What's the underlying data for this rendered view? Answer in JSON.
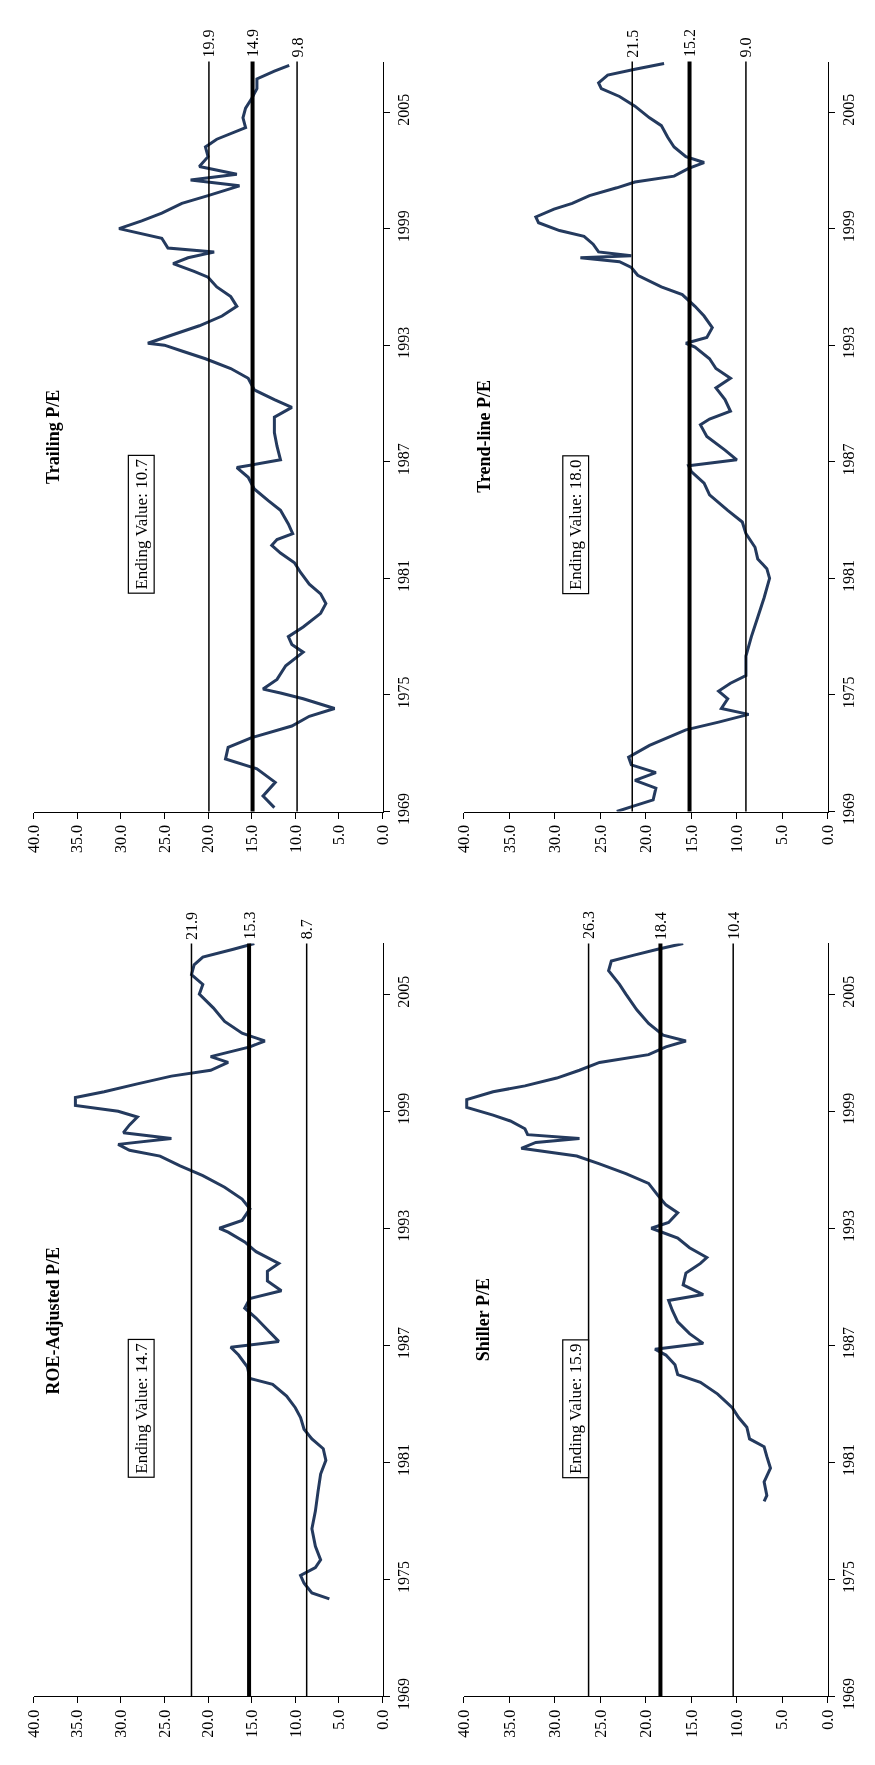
{
  "chart_data": [
    {
      "type": "line",
      "title": "Trailing P/E",
      "annotations": [
        "Ending Value: 10.7"
      ],
      "xlim": [
        40,
        0
      ],
      "xticks": [
        {
          "value": 40,
          "label": "40.0"
        },
        {
          "value": 35,
          "label": "35.0"
        },
        {
          "value": 30,
          "label": "30.0"
        },
        {
          "value": 25,
          "label": "25.0"
        },
        {
          "value": 20,
          "label": "20.0"
        },
        {
          "value": 15,
          "label": "15.0"
        },
        {
          "value": 10,
          "label": "10.0"
        },
        {
          "value": 5,
          "label": "5.0"
        },
        {
          "value": 0,
          "label": "0.0"
        }
      ],
      "ylim": [
        1969,
        2007.6
      ],
      "yticks": [
        1969,
        1975,
        1981,
        1987,
        1993,
        1999,
        2005
      ],
      "grid": false,
      "marker": "none",
      "line_style": "solid",
      "ref_lines": [
        {
          "axis": "x",
          "value": 19.9,
          "label": "19.9"
        },
        {
          "axis": "x",
          "value": 14.9,
          "label": "14.9"
        },
        {
          "axis": "x",
          "value": 9.8,
          "label": "9.8"
        }
      ],
      "series": [
        {
          "color": "#243a5e",
          "values": [
            1969.2,
            1969.8,
            1970.5,
            1971.2,
            1971.7,
            1972.3,
            1972.8,
            1973.4,
            1973.9,
            1974.3,
            1974.8,
            1975.1,
            1975.3,
            1975.8,
            1976.5,
            1977.2,
            1977.6,
            1978.0,
            1978.5,
            1979.2,
            1979.7,
            1980.2,
            1980.7,
            1981.3,
            1981.8,
            1982.3,
            1982.7,
            1983.0,
            1983.3,
            1983.8,
            1984.5,
            1985.0,
            1985.6,
            1986.2,
            1986.7,
            1987.1,
            1987.8,
            1988.5,
            1989.3,
            1989.8,
            1990.2,
            1990.7,
            1991.3,
            1991.8,
            1992.3,
            1992.7,
            1993.0,
            1993.1,
            1993.5,
            1994.0,
            1994.5,
            1995.0,
            1995.5,
            1996.0,
            1996.5,
            1996.8,
            1997.2,
            1997.5,
            1997.8,
            1998.0,
            1998.5,
            1999.0,
            1999.4,
            1999.8,
            2000.3,
            2000.7,
            2001.2,
            2001.5,
            2001.8,
            2002.2,
            2002.7,
            2003.2,
            2003.6,
            2004.2,
            2004.7,
            2005.2,
            2005.7,
            2006.2,
            2006.7,
            2007.1,
            2007.4
          ],
          "x": [
            12.4,
            13.7,
            12.3,
            14.4,
            18.0,
            17.7,
            15.0,
            10.4,
            8.4,
            5.5,
            9.1,
            11.7,
            13.7,
            12.1,
            11.1,
            9.1,
            10.4,
            10.8,
            9.1,
            7.1,
            6.5,
            7.1,
            8.4,
            9.4,
            10.1,
            11.7,
            12.7,
            12.1,
            10.3,
            10.8,
            11.7,
            13.1,
            14.7,
            15.4,
            16.7,
            11.7,
            12.1,
            12.4,
            12.4,
            10.4,
            12.4,
            14.7,
            15.4,
            17.4,
            20.3,
            23.0,
            25.0,
            26.9,
            24.3,
            21.0,
            18.4,
            16.7,
            17.4,
            19.0,
            20.0,
            21.6,
            24.0,
            22.3,
            19.3,
            24.6,
            25.3,
            30.2,
            27.6,
            25.3,
            23.0,
            20.0,
            16.4,
            22.0,
            16.7,
            21.0,
            20.0,
            20.3,
            19.0,
            15.7,
            16.0,
            15.7,
            15.0,
            14.4,
            14.4,
            12.4,
            10.7
          ]
        }
      ]
    },
    {
      "type": "line",
      "title": "Trend-line P/E",
      "annotations": [
        "Ending Value: 18.0"
      ],
      "xlim": [
        40,
        0
      ],
      "xticks": [
        {
          "value": 40,
          "label": "40.0"
        },
        {
          "value": 35,
          "label": "35.0"
        },
        {
          "value": 30,
          "label": "30.0"
        },
        {
          "value": 25,
          "label": "25.0"
        },
        {
          "value": 20,
          "label": "20.0"
        },
        {
          "value": 15,
          "label": "15.0"
        },
        {
          "value": 10,
          "label": "10.0"
        },
        {
          "value": 5,
          "label": "5.0"
        },
        {
          "value": 0,
          "label": "0.0"
        }
      ],
      "ylim": [
        1969,
        2007.6
      ],
      "yticks": [
        1969,
        1975,
        1981,
        1987,
        1993,
        1999,
        2005
      ],
      "grid": false,
      "marker": "none",
      "line_style": "solid",
      "ref_lines": [
        {
          "axis": "x",
          "value": 21.5,
          "label": "21.5"
        },
        {
          "axis": "x",
          "value": 15.2,
          "label": "15.2"
        },
        {
          "axis": "x",
          "value": 9.0,
          "label": "9.0"
        }
      ],
      "series": [
        {
          "color": "#243a5e",
          "values": [
            1969.0,
            1969.3,
            1969.6,
            1970.2,
            1970.6,
            1971.0,
            1971.4,
            1971.8,
            1972.4,
            1972.8,
            1973.2,
            1973.6,
            1974.0,
            1974.3,
            1974.8,
            1975.2,
            1975.6,
            1976.0,
            1977.0,
            1978.0,
            1979.0,
            1980.0,
            1981.0,
            1981.5,
            1982.0,
            1982.6,
            1983.3,
            1983.9,
            1984.5,
            1985.3,
            1985.9,
            1986.5,
            1986.8,
            1987.1,
            1987.6,
            1988.3,
            1988.9,
            1989.2,
            1989.6,
            1990.2,
            1990.8,
            1991.3,
            1991.8,
            1992.3,
            1992.9,
            1993.1,
            1993.4,
            1993.9,
            1994.5,
            1995.0,
            1995.6,
            1996.0,
            1996.6,
            1997.0,
            1997.3,
            1997.5,
            1997.6,
            1997.8,
            1998.2,
            1998.6,
            1998.9,
            1999.3,
            1999.6,
            2000.0,
            2000.3,
            2000.7,
            2001.1,
            2001.4,
            2001.7,
            2002.1,
            2002.4,
            2002.7,
            2003.2,
            2003.7,
            2004.3,
            2004.7,
            2005.3,
            2005.8,
            2006.2,
            2006.5,
            2006.9,
            2007.2,
            2007.5
          ],
          "x": [
            23.2,
            21.2,
            19.2,
            18.9,
            21.2,
            18.9,
            21.6,
            21.9,
            19.6,
            17.6,
            15.6,
            12.0,
            8.7,
            11.7,
            11.0,
            12.0,
            10.7,
            9.0,
            9.0,
            8.4,
            7.7,
            7.0,
            6.4,
            6.7,
            7.7,
            8.0,
            9.0,
            9.4,
            11.0,
            13.0,
            13.6,
            15.0,
            15.3,
            10.0,
            11.3,
            13.3,
            14.0,
            13.0,
            10.7,
            11.3,
            12.3,
            10.7,
            12.3,
            13.0,
            14.6,
            15.6,
            13.3,
            12.7,
            13.6,
            14.6,
            16.0,
            18.3,
            20.9,
            21.6,
            22.9,
            27.2,
            21.6,
            25.2,
            25.8,
            26.8,
            29.5,
            31.8,
            32.1,
            30.1,
            28.1,
            26.2,
            23.2,
            21.2,
            16.9,
            15.3,
            13.6,
            15.6,
            16.9,
            17.6,
            18.3,
            19.6,
            21.2,
            22.9,
            24.9,
            25.2,
            24.2,
            21.2,
            18.0
          ]
        }
      ]
    },
    {
      "type": "line",
      "title": "ROE-Adjusted P/E",
      "annotations": [
        "Ending Value: 14.7"
      ],
      "xlim": [
        40,
        0
      ],
      "xticks": [
        {
          "value": 40,
          "label": "40.0"
        },
        {
          "value": 35,
          "label": "35.0"
        },
        {
          "value": 30,
          "label": "30.0"
        },
        {
          "value": 25,
          "label": "25.0"
        },
        {
          "value": 20,
          "label": "20.0"
        },
        {
          "value": 15,
          "label": "15.0"
        },
        {
          "value": 10,
          "label": "10.0"
        },
        {
          "value": 5,
          "label": "5.0"
        },
        {
          "value": 0,
          "label": "0.0"
        }
      ],
      "ylim": [
        1969,
        2007.6
      ],
      "yticks": [
        1969,
        1975,
        1981,
        1987,
        1993,
        1999,
        2005
      ],
      "grid": false,
      "marker": "none",
      "line_style": "solid",
      "ref_lines": [
        {
          "axis": "x",
          "value": 21.9,
          "label": "21.9"
        },
        {
          "axis": "x",
          "value": 15.3,
          "label": "15.3"
        },
        {
          "axis": "x",
          "value": 8.7,
          "label": "8.7"
        }
      ],
      "series": [
        {
          "color": "#243a5e",
          "values": [
            1974.0,
            1974.3,
            1974.8,
            1975.2,
            1975.6,
            1976.0,
            1976.7,
            1977.6,
            1978.5,
            1979.5,
            1980.4,
            1981.1,
            1981.7,
            1982.2,
            1982.7,
            1983.3,
            1983.8,
            1984.4,
            1985.0,
            1985.3,
            1985.9,
            1986.5,
            1986.9,
            1987.2,
            1987.8,
            1988.4,
            1988.9,
            1989.4,
            1989.8,
            1990.3,
            1990.8,
            1991.2,
            1991.8,
            1992.3,
            1992.8,
            1993.0,
            1993.4,
            1994.0,
            1994.5,
            1995.1,
            1995.7,
            1996.2,
            1996.7,
            1997.0,
            1997.3,
            1997.6,
            1997.9,
            1998.3,
            1998.7,
            1999.0,
            1999.3,
            1999.7,
            2000.0,
            2000.4,
            2000.8,
            2001.1,
            2001.5,
            2001.8,
            2002.3,
            2002.6,
            2003.0,
            2003.6,
            2004.3,
            2005.0,
            2005.5,
            2006.0,
            2006.5,
            2006.9,
            2007.3,
            2007.6
          ],
          "x": [
            6.1,
            8.1,
            9.0,
            9.4,
            7.7,
            7.1,
            7.7,
            8.1,
            7.7,
            7.4,
            7.1,
            6.5,
            6.8,
            8.1,
            9.0,
            9.4,
            10.0,
            11.0,
            12.6,
            15.2,
            15.5,
            16.5,
            17.4,
            11.9,
            13.2,
            14.5,
            15.8,
            15.2,
            11.6,
            13.2,
            13.2,
            11.9,
            14.5,
            15.8,
            17.7,
            18.7,
            16.1,
            15.2,
            16.1,
            18.1,
            20.6,
            23.2,
            25.5,
            29.0,
            30.3,
            24.2,
            29.7,
            29.0,
            28.1,
            30.3,
            35.2,
            35.2,
            31.9,
            28.1,
            24.2,
            19.7,
            17.7,
            19.7,
            15.2,
            13.5,
            16.1,
            18.1,
            19.4,
            21.0,
            20.6,
            21.9,
            21.6,
            20.6,
            17.1,
            14.7
          ]
        }
      ]
    },
    {
      "type": "line",
      "title": "Shiller P/E",
      "annotations": [
        "Ending Value: 15.9"
      ],
      "xlim": [
        40,
        0
      ],
      "xticks": [
        {
          "value": 40,
          "label": "40.0"
        },
        {
          "value": 35,
          "label": "35.0"
        },
        {
          "value": 30,
          "label": "30.0"
        },
        {
          "value": 25,
          "label": "25.0"
        },
        {
          "value": 20,
          "label": "20.0"
        },
        {
          "value": 15,
          "label": "15.0"
        },
        {
          "value": 10,
          "label": "10.0"
        },
        {
          "value": 5,
          "label": "5.0"
        },
        {
          "value": 0,
          "label": "0.0"
        }
      ],
      "ylim": [
        1969,
        2007.6
      ],
      "yticks": [
        1969,
        1975,
        1981,
        1987,
        1993,
        1999,
        2005
      ],
      "grid": false,
      "marker": "none",
      "line_style": "solid",
      "ref_lines": [
        {
          "axis": "x",
          "value": 26.3,
          "label": "26.3"
        },
        {
          "axis": "x",
          "value": 18.4,
          "label": "18.4"
        },
        {
          "axis": "x",
          "value": 10.4,
          "label": "10.4"
        }
      ],
      "series": [
        {
          "color": "#243a5e",
          "values": [
            1979.0,
            1979.3,
            1980.0,
            1980.7,
            1981.3,
            1981.8,
            1982.2,
            1982.8,
            1983.3,
            1983.8,
            1984.5,
            1985.1,
            1985.5,
            1986.0,
            1986.5,
            1986.8,
            1987.1,
            1987.6,
            1988.2,
            1988.8,
            1989.3,
            1989.6,
            1990.1,
            1990.7,
            1991.2,
            1991.5,
            1992.0,
            1992.5,
            1993.0,
            1993.3,
            1993.8,
            1994.2,
            1994.7,
            1995.3,
            1995.8,
            1996.3,
            1996.7,
            1997.1,
            1997.4,
            1997.6,
            1997.8,
            1998.1,
            1998.5,
            1998.8,
            1999.2,
            1999.6,
            2000.0,
            2000.3,
            2000.7,
            2001.1,
            2001.5,
            2001.9,
            2002.3,
            2002.6,
            2002.9,
            2003.5,
            2004.2,
            2005.0,
            2005.5,
            2006.2,
            2006.7,
            2007.0,
            2007.3,
            2007.6
          ],
          "x": [
            7.0,
            6.7,
            7.0,
            6.3,
            6.7,
            7.0,
            8.6,
            8.9,
            9.8,
            10.5,
            12.1,
            14.0,
            16.5,
            16.8,
            17.8,
            19.0,
            13.7,
            15.2,
            16.5,
            17.1,
            17.5,
            13.7,
            15.9,
            15.6,
            14.0,
            13.3,
            15.2,
            16.5,
            19.4,
            17.5,
            16.5,
            17.8,
            18.7,
            19.7,
            22.2,
            25.1,
            27.6,
            33.7,
            32.1,
            27.3,
            33.0,
            33.3,
            34.9,
            36.8,
            39.7,
            39.7,
            36.8,
            33.3,
            29.8,
            27.3,
            25.1,
            19.7,
            17.8,
            15.6,
            18.1,
            19.7,
            21.0,
            22.2,
            22.9,
            24.1,
            23.8,
            21.3,
            18.7,
            15.9
          ]
        }
      ]
    }
  ]
}
